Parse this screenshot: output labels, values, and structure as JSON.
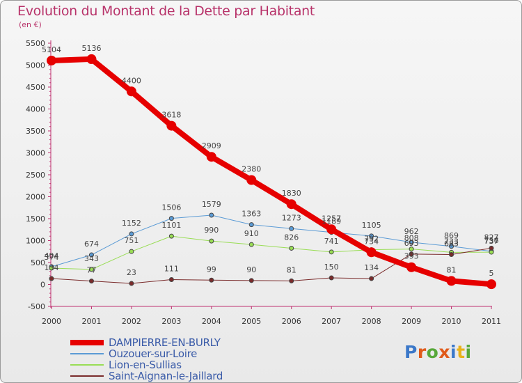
{
  "title": "Evolution du Montant de la Dette par Habitant",
  "subtitle": "(en €)",
  "logo": {
    "letters": [
      "P",
      "r",
      "o",
      "x",
      "i",
      "t",
      "i"
    ],
    "colors": [
      "#3b78c9",
      "#e05a1a",
      "#57a83a",
      "#e05a1a",
      "#3b78c9",
      "#e8b21a",
      "#57a83a"
    ]
  },
  "chart_data": {
    "type": "line",
    "x": [
      "2000",
      "2001",
      "2002",
      "2003",
      "2004",
      "2005",
      "2006",
      "2007",
      "2008",
      "2009",
      "2010",
      "2011"
    ],
    "ylim": [
      -500,
      5500
    ],
    "yticks": [
      -500,
      0,
      500,
      1000,
      1500,
      2000,
      2500,
      3000,
      3500,
      4000,
      4500,
      5000,
      5500
    ],
    "grid": false,
    "legend_position": "bottom-left",
    "series": [
      {
        "name": "DAMPIERRE-EN-BURLY",
        "color": "#e60000",
        "width": 8,
        "values": [
          5104,
          5136,
          4400,
          3618,
          2909,
          2380,
          1830,
          1257,
          734,
          393,
          81,
          5
        ],
        "labels": [
          "5104",
          "5136",
          "4400",
          "3618",
          "2909",
          "2380",
          "1830",
          "1257",
          "734",
          "393",
          "81",
          "5"
        ]
      },
      {
        "name": "Ouzouer-sur-Loire",
        "color": "#5b9bd5",
        "width": 1,
        "values": [
          404,
          674,
          1152,
          1506,
          1579,
          1363,
          1273,
          1189,
          1105,
          962,
          869,
          756
        ],
        "labels": [
          "404",
          "674",
          "1152",
          "1506",
          "1579",
          "1363",
          "1273",
          "1189",
          "1105",
          "962",
          "869",
          "756"
        ]
      },
      {
        "name": "Lion-en-Sullias",
        "color": "#99dd55",
        "width": 1,
        "values": [
          374,
          343,
          751,
          1101,
          990,
          910,
          826,
          741,
          792,
          808,
          733,
          737
        ],
        "labels": [
          "374",
          "343",
          "751",
          "1101",
          "990",
          "910",
          "826",
          "741",
          "792",
          "808",
          "733",
          "737"
        ]
      },
      {
        "name": "Saint-Aignan-le-Jaillard",
        "color": "#7a2b2b",
        "width": 1,
        "values": [
          134,
          77,
          23,
          111,
          99,
          90,
          81,
          150,
          134,
          693,
          683,
          827
        ],
        "labels": [
          "134",
          "77",
          "23",
          "111",
          "99",
          "90",
          "81",
          "150",
          "134",
          "693",
          "683",
          "827"
        ]
      }
    ]
  }
}
